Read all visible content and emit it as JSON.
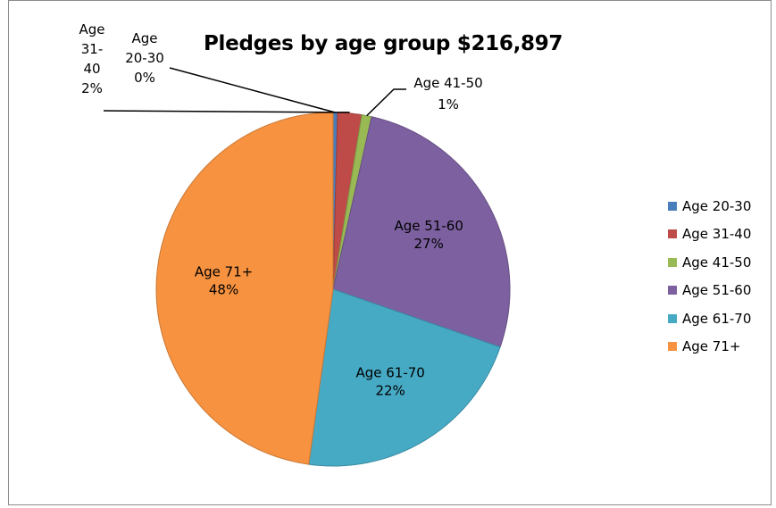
{
  "chart_data": {
    "type": "pie",
    "title": "Pledges by age group $216,897",
    "categories": [
      "Age 20-30",
      "Age 31-40",
      "Age 41-50",
      "Age 51-60",
      "Age 61-70",
      "Age 71+"
    ],
    "values": [
      0.4,
      2.2,
      0.9,
      26.8,
      21.9,
      47.8
    ],
    "percent_labels": [
      "0%",
      "2%",
      "1%",
      "27%",
      "22%",
      "48%"
    ],
    "colors": [
      "#4a7ebb",
      "#be4b48",
      "#98b954",
      "#7d60a0",
      "#46aac5",
      "#f69240"
    ],
    "legend_position": "right"
  }
}
